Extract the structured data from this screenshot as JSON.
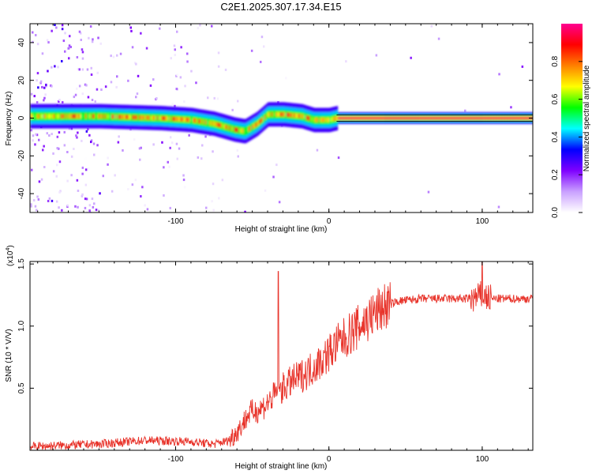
{
  "title": "C2E1.2025.307.17.34.E15",
  "chart_data": [
    {
      "type": "heatmap",
      "name": "spectrogram",
      "xlabel": "Height of straight line (km)",
      "ylabel": "Frequency (Hz)",
      "xlim": [
        -195,
        133
      ],
      "ylim": [
        -50,
        50
      ],
      "xticks": [
        -100,
        0,
        100
      ],
      "xtick_labels": [
        "-100",
        "0",
        "100"
      ],
      "yticks": [
        -40,
        -20,
        0,
        20,
        40
      ],
      "ytick_labels": [
        "-40",
        "-20",
        "0",
        "20",
        "40"
      ],
      "ridge_centerline": [
        {
          "x": -195,
          "y": 1
        },
        {
          "x": -150,
          "y": 1
        },
        {
          "x": -110,
          "y": 0
        },
        {
          "x": -90,
          "y": -1
        },
        {
          "x": -75,
          "y": -3
        },
        {
          "x": -62,
          "y": -6
        },
        {
          "x": -55,
          "y": -7
        },
        {
          "x": -47,
          "y": -3
        },
        {
          "x": -40,
          "y": 2
        },
        {
          "x": -30,
          "y": 2
        },
        {
          "x": -18,
          "y": 1
        },
        {
          "x": -10,
          "y": -1
        },
        {
          "x": 0,
          "y": -1
        },
        {
          "x": 5,
          "y": 0
        },
        {
          "x": 20,
          "y": 0
        },
        {
          "x": 133,
          "y": 0
        }
      ],
      "colorbar": {
        "label": "Normalized spectral amplitude",
        "range": [
          0,
          1
        ],
        "ticks": [
          0.0,
          0.2,
          0.4,
          0.6,
          0.8
        ],
        "tick_labels": [
          "0.0",
          "0.2",
          "0.4",
          "0.6",
          "0.8"
        ],
        "colors": [
          "#ffffff",
          "#c9a0ff",
          "#7f00ff",
          "#0000ff",
          "#00ffff",
          "#00ff00",
          "#ffff00",
          "#ff8000",
          "#ff0000",
          "#ff0090"
        ]
      }
    },
    {
      "type": "line",
      "name": "snr",
      "xlabel": "Height of straight line (km)",
      "ylabel": "SNR (10 * V/V)",
      "scale_label": "(x10",
      "scale_exponent": "4",
      "scale_close": ")",
      "xlim": [
        -195,
        133
      ],
      "ylim": [
        0,
        1.52
      ],
      "xticks": [
        -100,
        0,
        100
      ],
      "xtick_labels": [
        "-100",
        "0",
        "100"
      ],
      "yticks": [
        0.5,
        1.0,
        1.5
      ],
      "ytick_labels": [
        "0.5",
        "1.0",
        "1.5"
      ],
      "color": "#e8332a",
      "series": [
        {
          "name": "SNR",
          "x": [
            -195,
            -150,
            -120,
            -90,
            -75,
            -65,
            -58,
            -52,
            -45,
            -40,
            -35,
            -25,
            -15,
            -5,
            5,
            15,
            25,
            35,
            45,
            60,
            80,
            95,
            100,
            105,
            110,
            120,
            133
          ],
          "y": [
            0.03,
            0.05,
            0.08,
            0.07,
            0.05,
            0.08,
            0.18,
            0.3,
            0.33,
            0.38,
            0.45,
            0.55,
            0.62,
            0.72,
            0.85,
            0.95,
            1.05,
            1.15,
            1.2,
            1.22,
            1.22,
            1.22,
            1.25,
            1.22,
            1.22,
            1.22,
            1.22
          ]
        }
      ],
      "spikes": [
        {
          "x": -33,
          "y": 1.44
        },
        {
          "x": 100,
          "y": 1.52
        }
      ]
    }
  ]
}
